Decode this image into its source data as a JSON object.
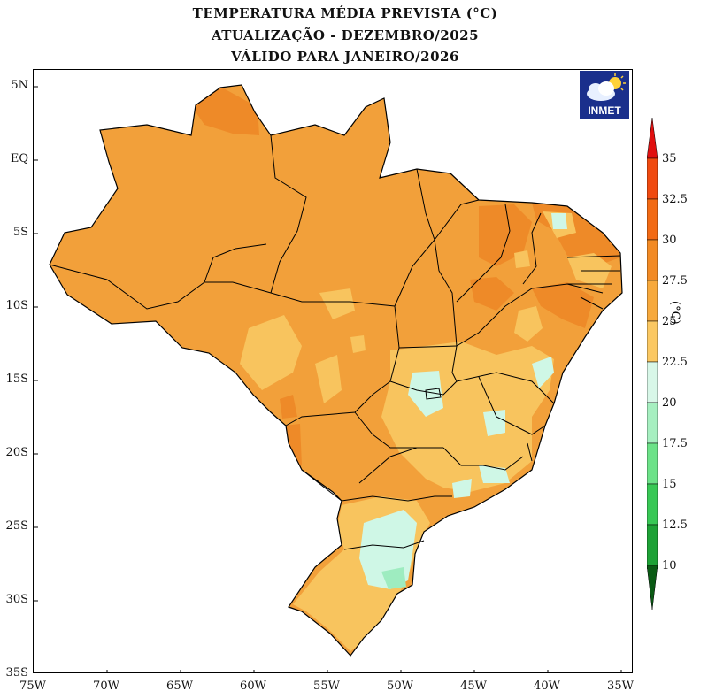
{
  "title": {
    "line1": "TEMPERATURA MÉDIA PREVISTA (°C)",
    "line2": "ATUALIZAÇÃO - DEZEMBRO/2025",
    "line3": "VÁLIDO PARA JANEIRO/2026"
  },
  "axes": {
    "lat_labels": [
      "5N",
      "EQ",
      "5S",
      "10S",
      "15S",
      "20S",
      "25S",
      "30S",
      "35S"
    ],
    "lon_labels": [
      "75W",
      "70W",
      "65W",
      "60W",
      "55W",
      "50W",
      "45W",
      "40W",
      "35W"
    ]
  },
  "logo": {
    "text": "INMET",
    "icon": "cloud-sun-icon"
  },
  "colorbar": {
    "unit": "(°C)",
    "labels": [
      "35",
      "32.5",
      "30",
      "27.5",
      "25",
      "22.5",
      "20",
      "17.5",
      "15",
      "12.5",
      "10"
    ],
    "colors": [
      "#e01010",
      "#f04a10",
      "#f26a14",
      "#f28a24",
      "#f7a93c",
      "#fbc862",
      "#d8f7e8",
      "#a6efc0",
      "#6ce288",
      "#38c855",
      "#1ea236",
      "#117d22",
      "#0a5a14"
    ]
  },
  "colors": {
    "base_25_275": "#f2a03a",
    "band_275_30": "#ee8a28",
    "band_225_25": "#f8c45e",
    "band_20_225": "#cff7e6",
    "band_175_20": "#9eecc0"
  }
}
